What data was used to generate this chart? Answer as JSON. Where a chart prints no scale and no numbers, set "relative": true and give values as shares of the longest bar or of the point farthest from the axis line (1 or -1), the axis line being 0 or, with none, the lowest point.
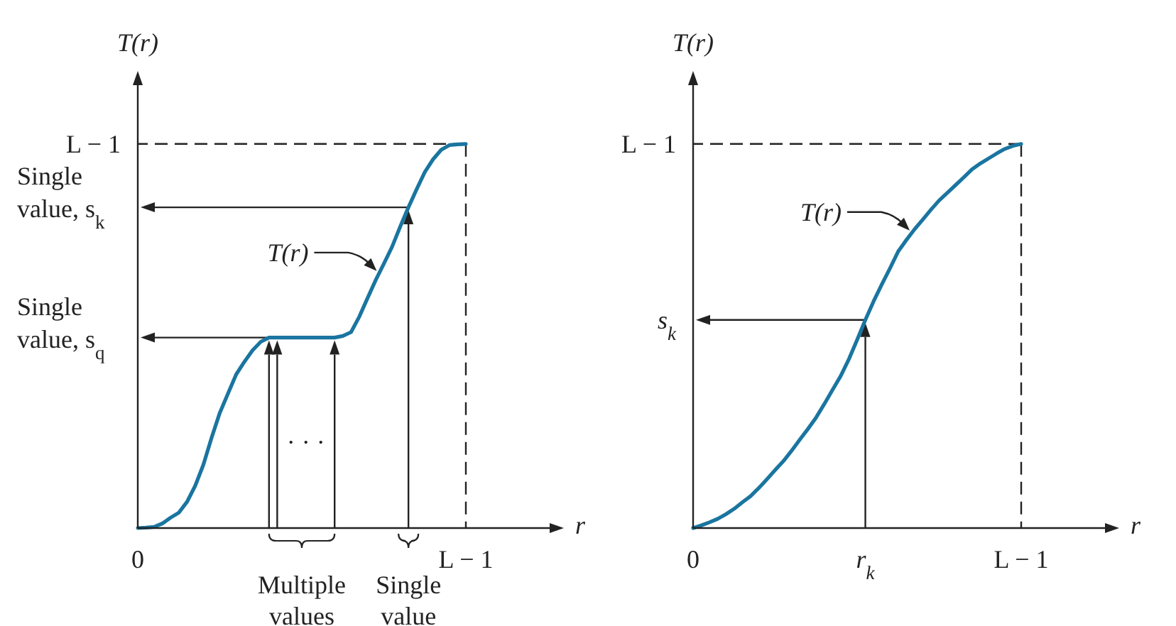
{
  "chart_data": [
    {
      "type": "line",
      "relative": true,
      "xlabel": "r",
      "ylabel": "T(r)",
      "categories": [
        "0",
        null,
        null,
        null,
        null,
        null,
        null,
        null,
        null,
        null,
        null,
        null,
        null,
        null,
        null,
        null,
        null,
        null,
        null,
        null,
        "Multiple values",
        null,
        null,
        null,
        null,
        null,
        null,
        null,
        null,
        null,
        null,
        null,
        null,
        "Single value",
        null,
        null,
        null,
        null,
        null,
        null,
        "L − 1"
      ],
      "series": [
        {
          "color": "#1a75a0",
          "values": [
            0,
            0.001,
            0.003,
            0.012,
            0.027,
            0.04,
            0.068,
            0.11,
            0.165,
            0.235,
            0.3,
            0.35,
            0.4,
            0.433,
            0.463,
            0.485,
            0.496,
            0.496,
            0.496,
            0.496,
            0.496,
            0.496,
            0.496,
            0.496,
            0.496,
            0.5,
            0.51,
            0.55,
            0.598,
            0.645,
            0.688,
            0.732,
            0.785,
            0.835,
            0.882,
            0.927,
            0.96,
            0.985,
            0.997,
            0.999,
            1
          ]
        }
      ],
      "ref_lines": [
        {
          "axis": "y",
          "value": 1,
          "label": "L − 1",
          "line_style": "dashed"
        },
        {
          "axis": "y",
          "value": 0.835,
          "label": "Single value, s$_{k}$"
        },
        {
          "axis": "y",
          "value": 0.496,
          "label": "Single value, s$_{q}$"
        }
      ],
      "annotations": [
        "T(r)",
        "· · ·"
      ]
    },
    {
      "type": "line",
      "relative": true,
      "xlabel": "r",
      "ylabel": "T(r)",
      "categories": [
        "0",
        null,
        null,
        null,
        null,
        null,
        null,
        null,
        null,
        null,
        null,
        null,
        null,
        null,
        null,
        null,
        null,
        null,
        null,
        null,
        null,
        "r$_{k}$",
        null,
        null,
        null,
        null,
        null,
        null,
        null,
        null,
        null,
        null,
        null,
        null,
        null,
        null,
        null,
        null,
        null,
        null,
        "L − 1"
      ],
      "series": [
        {
          "color": "#1a75a0",
          "values": [
            0,
            0.007,
            0.015,
            0.024,
            0.036,
            0.05,
            0.067,
            0.083,
            0.104,
            0.127,
            0.151,
            0.174,
            0.201,
            0.23,
            0.258,
            0.288,
            0.323,
            0.36,
            0.396,
            0.44,
            0.49,
            0.542,
            0.59,
            0.634,
            0.676,
            0.72,
            0.75,
            0.778,
            0.803,
            0.829,
            0.853,
            0.873,
            0.893,
            0.913,
            0.934,
            0.949,
            0.962,
            0.975,
            0.987,
            0.995,
            1
          ]
        }
      ],
      "ref_lines": [
        {
          "axis": "y",
          "value": 1,
          "label": "L − 1",
          "line_style": "dashed"
        },
        {
          "axis": "y",
          "value": 0.542,
          "label": "s$_{k}$"
        }
      ],
      "annotations": [
        "T(r)"
      ]
    }
  ]
}
